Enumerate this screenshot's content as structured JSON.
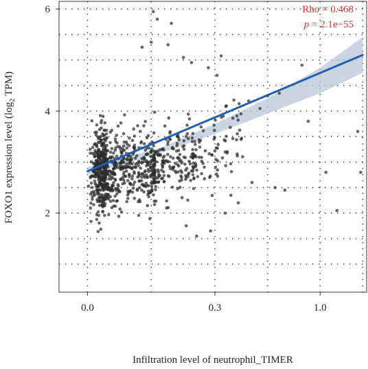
{
  "chart_data": {
    "type": "scatter",
    "xlabel": "Infiltration level of neutrophil_TIMER",
    "ylabel": "FOXO1 expression level (log",
    "ylabel_sub": "2",
    "ylabel_tail": " TPM)",
    "x_scale": "sqrt",
    "xlim": [
      -0.015,
      1.44
    ],
    "ylim": [
      0.45,
      6.15
    ],
    "x_ticks": [
      0.0,
      0.3,
      1.0
    ],
    "x_tick_labels": [
      "0.0",
      "0.3",
      "1.0"
    ],
    "y_ticks": [
      2,
      4,
      6
    ],
    "y_tick_labels": [
      "2",
      "4",
      "6"
    ],
    "grid": "dotted",
    "annotation": {
      "rho": "Rho = 0.468",
      "p_label": "p",
      "p_value": " = 2.1e−55"
    },
    "colors": {
      "points": "#2b2b2b",
      "fit_line": "#1f5fb0",
      "confidence_band": "#b8c6d8",
      "stat_text": "#e03030"
    },
    "fit_line": {
      "x": [
        0.0,
        1.4
      ],
      "y": [
        2.82,
        5.1
      ]
    },
    "confidence_band": {
      "x": [
        0.0,
        0.1,
        0.3,
        0.6,
        1.0,
        1.4
      ],
      "y_low": [
        2.75,
        3.18,
        3.55,
        3.95,
        4.35,
        4.75
      ],
      "y_high": [
        2.9,
        3.28,
        3.75,
        4.25,
        4.85,
        5.45
      ]
    },
    "outliers": [
      {
        "x": 0.08,
        "y": 5.95
      },
      {
        "x": 0.09,
        "y": 5.8
      },
      {
        "x": 0.13,
        "y": 5.72
      },
      {
        "x": 0.055,
        "y": 5.25
      },
      {
        "x": 0.075,
        "y": 5.35
      },
      {
        "x": 0.12,
        "y": 5.3
      },
      {
        "x": 0.17,
        "y": 5.05
      },
      {
        "x": 0.2,
        "y": 4.95
      },
      {
        "x": 0.27,
        "y": 4.85
      },
      {
        "x": 0.31,
        "y": 4.7
      },
      {
        "x": 0.33,
        "y": 5.08
      },
      {
        "x": 0.48,
        "y": 4.2
      },
      {
        "x": 0.55,
        "y": 4.05
      },
      {
        "x": 0.6,
        "y": 4.3
      },
      {
        "x": 0.68,
        "y": 4.35
      },
      {
        "x": 0.85,
        "y": 4.9
      },
      {
        "x": 0.9,
        "y": 3.8
      },
      {
        "x": 1.05,
        "y": 2.8
      },
      {
        "x": 1.15,
        "y": 2.05
      },
      {
        "x": 1.35,
        "y": 3.6
      },
      {
        "x": 1.38,
        "y": 2.8
      },
      {
        "x": 0.35,
        "y": 2.0
      },
      {
        "x": 0.28,
        "y": 1.65
      },
      {
        "x": 0.38,
        "y": 2.35
      },
      {
        "x": 0.42,
        "y": 2.2
      },
      {
        "x": 0.65,
        "y": 2.5
      },
      {
        "x": 0.72,
        "y": 2.45
      },
      {
        "x": 0.5,
        "y": 2.6
      },
      {
        "x": 0.22,
        "y": 1.55
      },
      {
        "x": 0.18,
        "y": 1.75
      }
    ]
  }
}
